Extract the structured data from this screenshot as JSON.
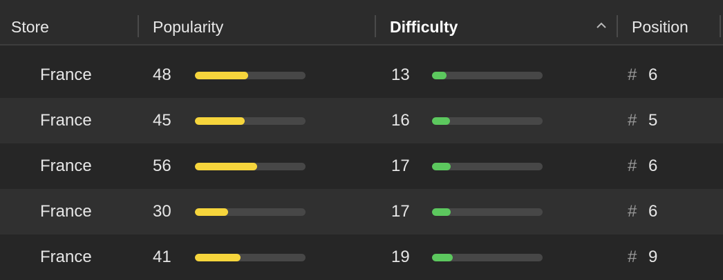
{
  "table": {
    "columns": [
      "Store",
      "Popularity",
      "Difficulty",
      "Position"
    ],
    "sorted_column": "Difficulty",
    "rows": [
      {
        "store": "France",
        "popularity": 48,
        "difficulty": 13,
        "position_symbol": "#",
        "position": 6
      },
      {
        "store": "France",
        "popularity": 45,
        "difficulty": 16,
        "position_symbol": "#",
        "position": 5
      },
      {
        "store": "France",
        "popularity": 56,
        "difficulty": 17,
        "position_symbol": "#",
        "position": 6
      },
      {
        "store": "France",
        "popularity": 30,
        "difficulty": 17,
        "position_symbol": "#",
        "position": 6
      },
      {
        "store": "France",
        "popularity": 41,
        "difficulty": 19,
        "position_symbol": "#",
        "position": 9
      }
    ]
  }
}
